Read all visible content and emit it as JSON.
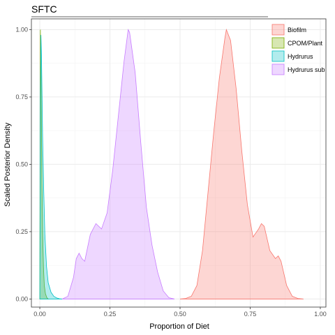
{
  "chart_data": {
    "type": "area",
    "title": "SFTC",
    "xlabel": "Proportion of Diet",
    "ylabel": "Scaled Posterior Density",
    "xlim": [
      -0.03,
      1.02
    ],
    "ylim": [
      -0.03,
      1.04
    ],
    "x_ticks": [
      0.0,
      0.25,
      0.5,
      0.75,
      1.0
    ],
    "x_tick_labels": [
      "0.00",
      "0.25",
      "0.50",
      "0.75",
      "1.00"
    ],
    "y_ticks": [
      0.0,
      0.25,
      0.5,
      0.75,
      1.0
    ],
    "y_tick_labels": [
      "0.00",
      "0.25",
      "0.50",
      "0.75",
      "1.00"
    ],
    "grid": true,
    "legend_position": "top-right",
    "series": [
      {
        "name": "Biofilm",
        "fill": "#F8766D",
        "stroke": "#F8766D",
        "points": [
          [
            0.5,
            0.0
          ],
          [
            0.52,
            0.002
          ],
          [
            0.54,
            0.01
          ],
          [
            0.56,
            0.05
          ],
          [
            0.58,
            0.18
          ],
          [
            0.6,
            0.4
          ],
          [
            0.62,
            0.62
          ],
          [
            0.64,
            0.82
          ],
          [
            0.66,
            0.97
          ],
          [
            0.665,
            1.0
          ],
          [
            0.68,
            0.96
          ],
          [
            0.7,
            0.78
          ],
          [
            0.72,
            0.55
          ],
          [
            0.74,
            0.35
          ],
          [
            0.76,
            0.23
          ],
          [
            0.78,
            0.26
          ],
          [
            0.79,
            0.28
          ],
          [
            0.8,
            0.27
          ],
          [
            0.82,
            0.18
          ],
          [
            0.84,
            0.15
          ],
          [
            0.85,
            0.16
          ],
          [
            0.86,
            0.14
          ],
          [
            0.88,
            0.05
          ],
          [
            0.9,
            0.01
          ],
          [
            0.92,
            0.002
          ],
          [
            0.94,
            0.0
          ]
        ]
      },
      {
        "name": "CPOM/Plant",
        "fill": "#7CAE00",
        "stroke": "#7CAE00",
        "points": [
          [
            0.0,
            0.0
          ],
          [
            0.001,
            0.6
          ],
          [
            0.002,
            1.0
          ],
          [
            0.004,
            0.85
          ],
          [
            0.006,
            0.6
          ],
          [
            0.008,
            0.4
          ],
          [
            0.01,
            0.25
          ],
          [
            0.013,
            0.12
          ],
          [
            0.016,
            0.05
          ],
          [
            0.02,
            0.02
          ],
          [
            0.025,
            0.005
          ],
          [
            0.03,
            0.0
          ]
        ]
      },
      {
        "name": "Hydrurus",
        "fill": "#00BFC4",
        "stroke": "#00BFC4",
        "points": [
          [
            0.0,
            0.0
          ],
          [
            0.002,
            0.75
          ],
          [
            0.004,
            0.98
          ],
          [
            0.006,
            0.9
          ],
          [
            0.008,
            0.75
          ],
          [
            0.01,
            0.6
          ],
          [
            0.014,
            0.4
          ],
          [
            0.018,
            0.24
          ],
          [
            0.024,
            0.12
          ],
          [
            0.03,
            0.06
          ],
          [
            0.04,
            0.025
          ],
          [
            0.05,
            0.01
          ],
          [
            0.06,
            0.004
          ],
          [
            0.07,
            0.001
          ],
          [
            0.08,
            0.0
          ]
        ]
      },
      {
        "name": "Hydrurus sub",
        "fill": "#C77CFF",
        "stroke": "#C77CFF",
        "points": [
          [
            0.08,
            0.0
          ],
          [
            0.1,
            0.01
          ],
          [
            0.12,
            0.08
          ],
          [
            0.13,
            0.15
          ],
          [
            0.14,
            0.17
          ],
          [
            0.15,
            0.15
          ],
          [
            0.16,
            0.14
          ],
          [
            0.18,
            0.24
          ],
          [
            0.2,
            0.28
          ],
          [
            0.22,
            0.26
          ],
          [
            0.24,
            0.32
          ],
          [
            0.26,
            0.48
          ],
          [
            0.28,
            0.68
          ],
          [
            0.3,
            0.88
          ],
          [
            0.31,
            0.96
          ],
          [
            0.315,
            1.0
          ],
          [
            0.32,
            0.99
          ],
          [
            0.34,
            0.84
          ],
          [
            0.36,
            0.58
          ],
          [
            0.38,
            0.34
          ],
          [
            0.4,
            0.2
          ],
          [
            0.42,
            0.1
          ],
          [
            0.44,
            0.03
          ],
          [
            0.46,
            0.005
          ],
          [
            0.48,
            0.0
          ]
        ]
      }
    ]
  }
}
